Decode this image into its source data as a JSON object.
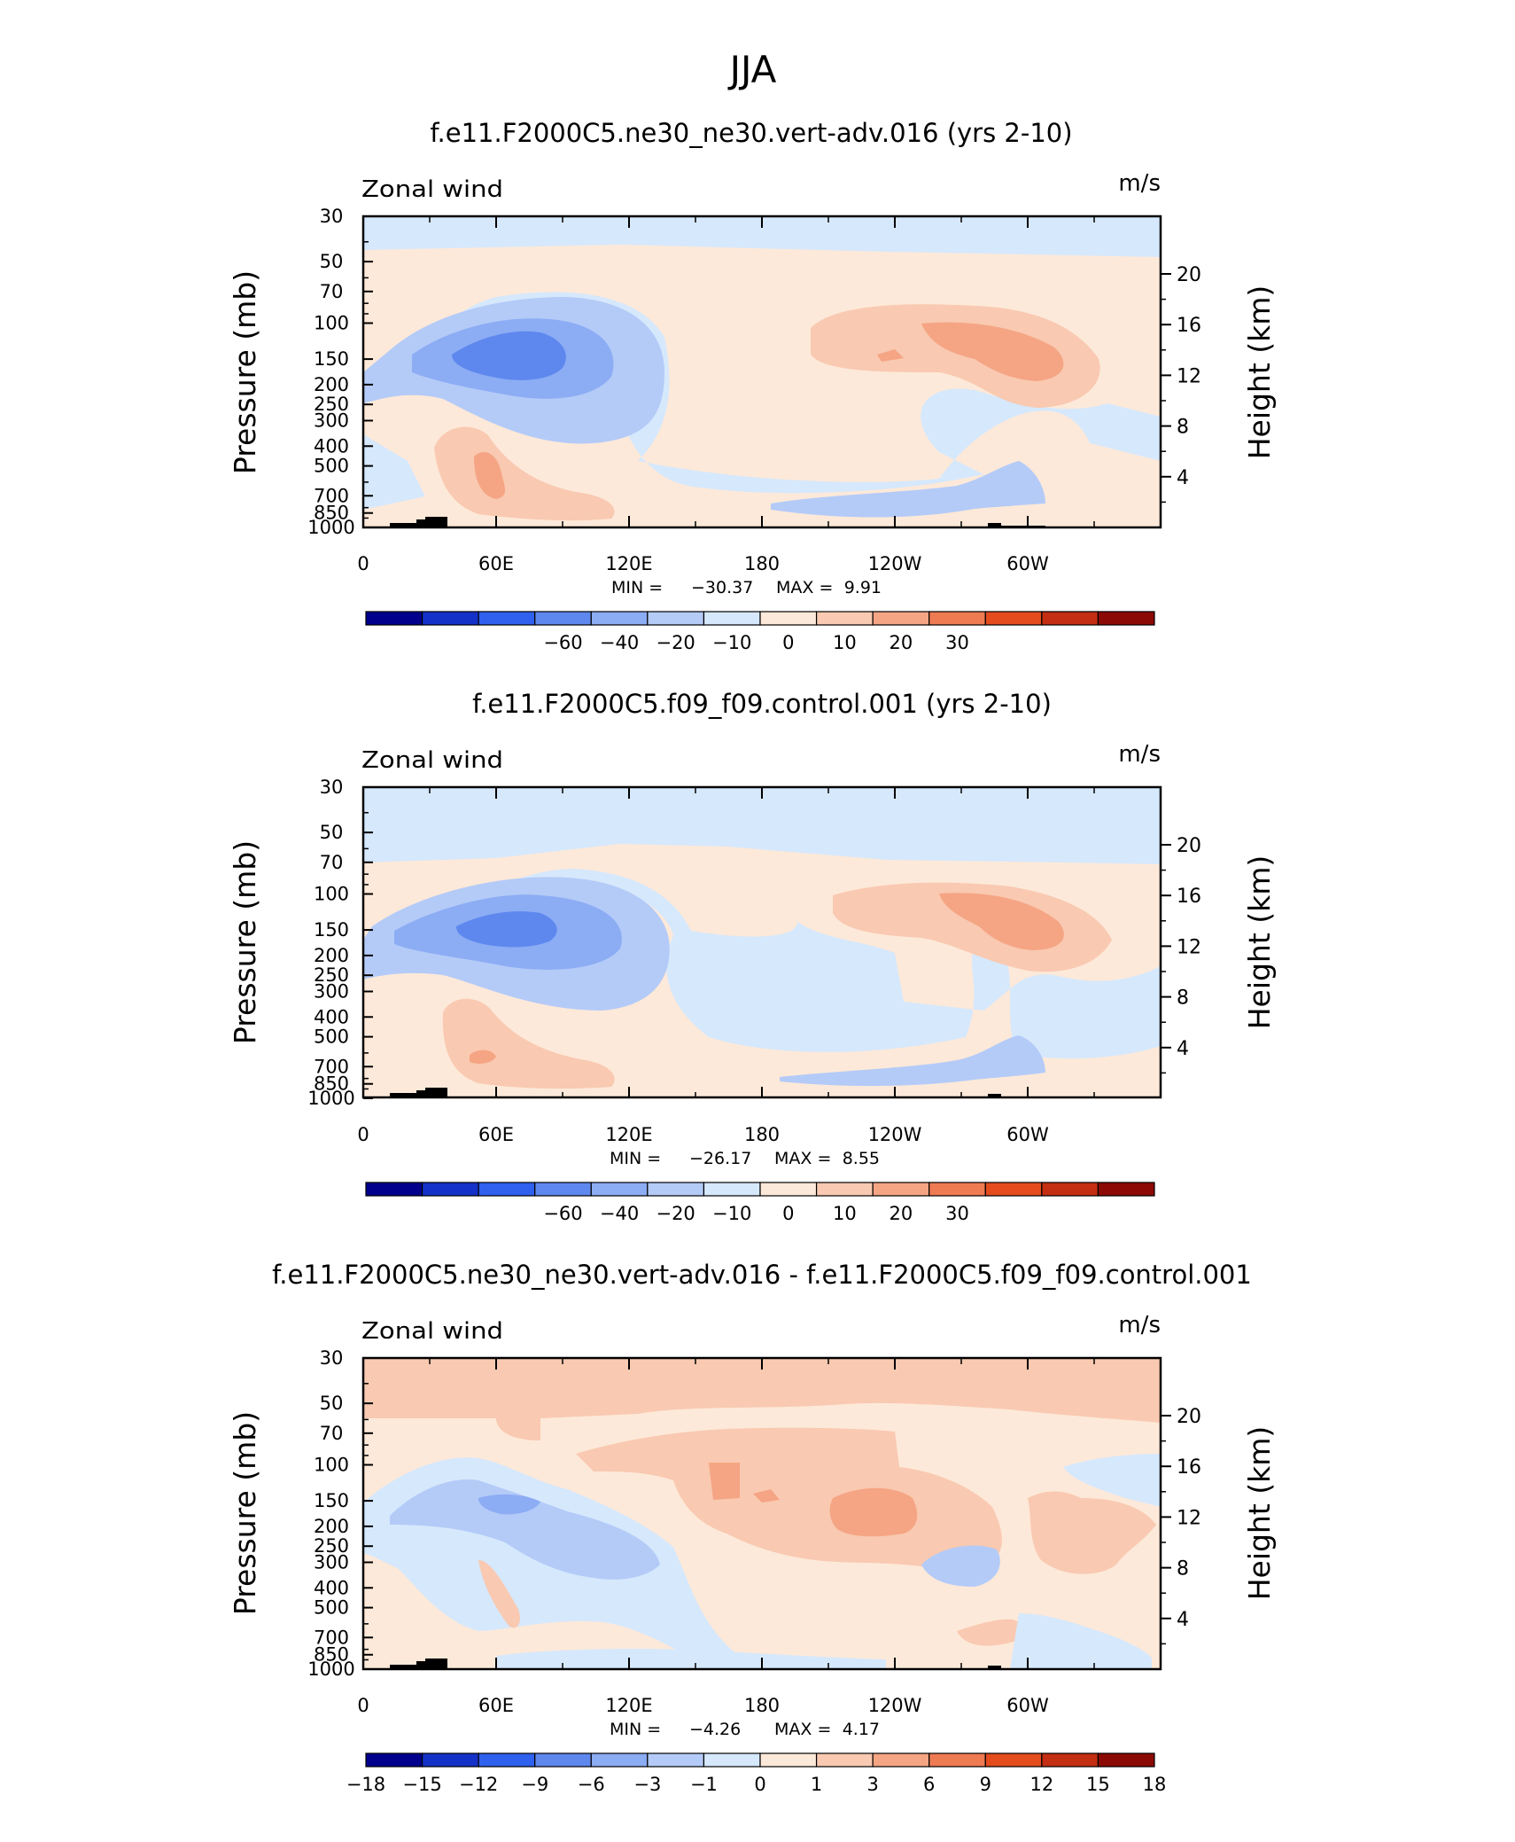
{
  "figure": {
    "title": "JJA"
  },
  "axes": {
    "pressure_label": "Pressure (mb)",
    "height_label": "Height (km)",
    "pressure_ticks": [
      30,
      50,
      70,
      100,
      150,
      200,
      250,
      300,
      400,
      500,
      700,
      850,
      1000
    ],
    "height_ticks": [
      20,
      16,
      12,
      8,
      4
    ],
    "lon_ticks": [
      "0",
      "60E",
      "120E",
      "180",
      "120W",
      "60W"
    ]
  },
  "chart_data": [
    {
      "type": "heatmap",
      "title": "f.e11.F2000C5.ne30_ne30.vert-adv.016 (yrs 2-10)",
      "variable": "Zonal wind",
      "units": "m/s",
      "stats_min_label": "MIN =",
      "stats_min": "−30.37",
      "stats_max_label": "MAX =",
      "stats_max": "9.91",
      "colorbar_labels": [
        "−60",
        "−40",
        "−20",
        "−10",
        "0",
        "10",
        "20",
        "30"
      ],
      "colorbar_colors": [
        "#00008c",
        "#1532c8",
        "#2f60ee",
        "#5e88ee",
        "#8cacf4",
        "#b4cbf8",
        "#d6e8fc",
        "#fde9d9",
        "#f9c9b1",
        "#f5a584",
        "#ef7b52",
        "#e44c1e",
        "#c42e12",
        "#8c0a05"
      ],
      "xlim": [
        0,
        360
      ],
      "ylim_mb": [
        1000,
        30
      ]
    },
    {
      "type": "heatmap",
      "title": "f.e11.F2000C5.f09_f09.control.001 (yrs 2-10)",
      "variable": "Zonal wind",
      "units": "m/s",
      "stats_min_label": "MIN =",
      "stats_min": "−26.17",
      "stats_max_label": "MAX =",
      "stats_max": "8.55",
      "colorbar_labels": [
        "−60",
        "−40",
        "−20",
        "−10",
        "0",
        "10",
        "20",
        "30"
      ],
      "colorbar_colors": [
        "#00008c",
        "#1532c8",
        "#2f60ee",
        "#5e88ee",
        "#8cacf4",
        "#b4cbf8",
        "#d6e8fc",
        "#fde9d9",
        "#f9c9b1",
        "#f5a584",
        "#ef7b52",
        "#e44c1e",
        "#c42e12",
        "#8c0a05"
      ],
      "xlim": [
        0,
        360
      ],
      "ylim_mb": [
        1000,
        30
      ]
    },
    {
      "type": "heatmap",
      "title": "f.e11.F2000C5.ne30_ne30.vert-adv.016 - f.e11.F2000C5.f09_f09.control.001",
      "variable": "Zonal wind",
      "units": "m/s",
      "stats_min_label": "MIN =",
      "stats_min": "−4.26",
      "stats_max_label": "MAX =",
      "stats_max": "4.17",
      "colorbar_labels": [
        "−18",
        "−15",
        "−12",
        "−9",
        "−6",
        "−3",
        "−1",
        "0",
        "1",
        "3",
        "6",
        "9",
        "12",
        "15",
        "18"
      ],
      "colorbar_colors": [
        "#00008c",
        "#1532c8",
        "#2f60ee",
        "#5e88ee",
        "#8cacf4",
        "#b4cbf8",
        "#d6e8fc",
        "#fde9d9",
        "#f9c9b1",
        "#f5a584",
        "#ef7b52",
        "#e44c1e",
        "#c42e12",
        "#8c0a05"
      ],
      "xlim": [
        0,
        360
      ],
      "ylim_mb": [
        1000,
        30
      ]
    }
  ]
}
